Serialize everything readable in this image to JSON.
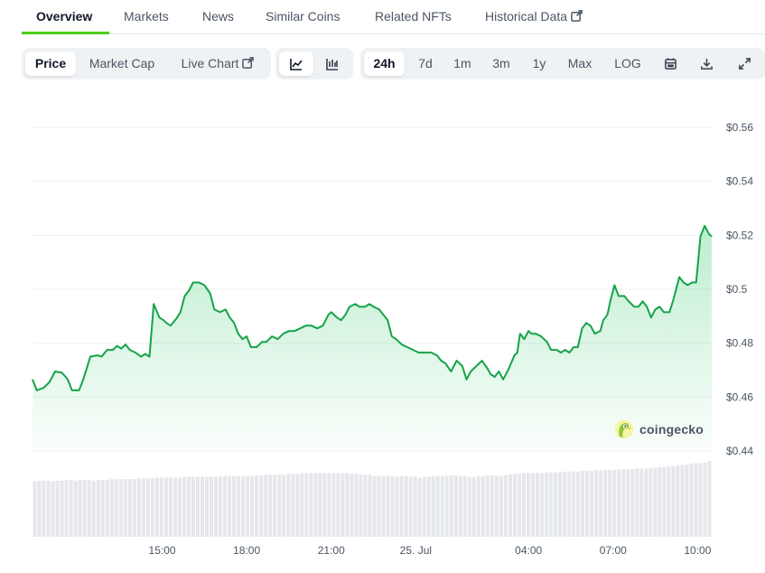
{
  "tabs": [
    {
      "label": "Overview",
      "active": true
    },
    {
      "label": "Markets"
    },
    {
      "label": "News"
    },
    {
      "label": "Similar Coins"
    },
    {
      "label": "Related NFTs"
    },
    {
      "label": "Historical Data",
      "external": true
    }
  ],
  "toolbar": {
    "metric": [
      {
        "label": "Price",
        "active": true
      },
      {
        "label": "Market Cap"
      },
      {
        "label": "Live Chart",
        "external": true
      }
    ],
    "chart_style": [
      {
        "icon": "line-chart-icon",
        "active": true
      },
      {
        "icon": "candlestick-chart-icon"
      }
    ],
    "ranges": [
      {
        "label": "24h",
        "active": true
      },
      {
        "label": "7d"
      },
      {
        "label": "1m"
      },
      {
        "label": "3m"
      },
      {
        "label": "1y"
      },
      {
        "label": "Max"
      },
      {
        "label": "LOG"
      }
    ],
    "actions": [
      "calendar-icon",
      "download-icon",
      "fullscreen-icon"
    ]
  },
  "watermark": {
    "text": "coingecko",
    "icon": "coingecko-logo-icon"
  },
  "colors": {
    "accent": "#4bcc00",
    "line": "#16a34a",
    "fill": "#22c55e",
    "volume": "#e5e7eb"
  },
  "chart_data": {
    "type": "area",
    "title": "",
    "xlabel": "",
    "ylabel": "",
    "yaxis_position": "right",
    "y_ticks": [
      0.44,
      0.46,
      0.48,
      0.5,
      0.52,
      0.54,
      0.56
    ],
    "y_tick_labels": [
      "$0.44",
      "$0.46",
      "$0.48",
      "$0.5",
      "$0.52",
      "$0.54",
      "$0.56"
    ],
    "ylim": [
      0.44,
      0.56
    ],
    "x_tick_labels": [
      {
        "label": "15:00",
        "t": 15
      },
      {
        "label": "18:00",
        "t": 18
      },
      {
        "label": "21:00",
        "t": 21
      },
      {
        "label": "25. Jul",
        "t": 24
      },
      {
        "label": "04:00",
        "t": 28
      },
      {
        "label": "07:00",
        "t": 31
      },
      {
        "label": "10:00",
        "t": 34
      }
    ],
    "xlim": [
      10.4,
      34.5
    ],
    "grid": true,
    "legend": "none",
    "series": [
      {
        "values": [
          [
            10.4,
            0.4665
          ],
          [
            10.55,
            0.4625
          ],
          [
            10.8,
            0.4635
          ],
          [
            11.0,
            0.4655
          ],
          [
            11.2,
            0.4695
          ],
          [
            11.45,
            0.469
          ],
          [
            11.65,
            0.4665
          ],
          [
            11.8,
            0.4625
          ],
          [
            12.05,
            0.4625
          ],
          [
            12.2,
            0.4665
          ],
          [
            12.45,
            0.475
          ],
          [
            12.7,
            0.4755
          ],
          [
            12.85,
            0.475
          ],
          [
            13.05,
            0.4775
          ],
          [
            13.25,
            0.4775
          ],
          [
            13.4,
            0.479
          ],
          [
            13.55,
            0.478
          ],
          [
            13.7,
            0.4795
          ],
          [
            13.85,
            0.4775
          ],
          [
            14.05,
            0.4765
          ],
          [
            14.25,
            0.475
          ],
          [
            14.4,
            0.476
          ],
          [
            14.55,
            0.475
          ],
          [
            14.7,
            0.4945
          ],
          [
            14.9,
            0.4895
          ],
          [
            15.05,
            0.4885
          ],
          [
            15.15,
            0.4875
          ],
          [
            15.3,
            0.4865
          ],
          [
            15.5,
            0.489
          ],
          [
            15.65,
            0.4915
          ],
          [
            15.8,
            0.4975
          ],
          [
            15.95,
            0.4995
          ],
          [
            16.1,
            0.5025
          ],
          [
            16.3,
            0.5025
          ],
          [
            16.5,
            0.5015
          ],
          [
            16.7,
            0.4985
          ],
          [
            16.85,
            0.4925
          ],
          [
            17.05,
            0.4915
          ],
          [
            17.25,
            0.4925
          ],
          [
            17.4,
            0.4895
          ],
          [
            17.55,
            0.4875
          ],
          [
            17.7,
            0.4835
          ],
          [
            17.85,
            0.4815
          ],
          [
            18.0,
            0.4825
          ],
          [
            18.15,
            0.4785
          ],
          [
            18.35,
            0.4785
          ],
          [
            18.55,
            0.4805
          ],
          [
            18.7,
            0.4805
          ],
          [
            18.9,
            0.4825
          ],
          [
            19.1,
            0.4815
          ],
          [
            19.3,
            0.4835
          ],
          [
            19.5,
            0.4845
          ],
          [
            19.7,
            0.4845
          ],
          [
            19.9,
            0.4855
          ],
          [
            20.1,
            0.4865
          ],
          [
            20.3,
            0.4865
          ],
          [
            20.5,
            0.4855
          ],
          [
            20.7,
            0.4865
          ],
          [
            20.9,
            0.4905
          ],
          [
            21.0,
            0.4915
          ],
          [
            21.2,
            0.4895
          ],
          [
            21.35,
            0.4885
          ],
          [
            21.5,
            0.4905
          ],
          [
            21.65,
            0.4935
          ],
          [
            21.85,
            0.4945
          ],
          [
            22.0,
            0.4935
          ],
          [
            22.2,
            0.4935
          ],
          [
            22.35,
            0.4945
          ],
          [
            22.5,
            0.4935
          ],
          [
            22.7,
            0.4925
          ],
          [
            22.85,
            0.4905
          ],
          [
            23.0,
            0.4885
          ],
          [
            23.15,
            0.4825
          ],
          [
            23.3,
            0.4815
          ],
          [
            23.5,
            0.4795
          ],
          [
            23.7,
            0.4785
          ],
          [
            23.9,
            0.4775
          ],
          [
            24.1,
            0.4765
          ],
          [
            24.3,
            0.4765
          ],
          [
            24.55,
            0.4765
          ],
          [
            24.75,
            0.4755
          ],
          [
            24.9,
            0.4735
          ],
          [
            25.05,
            0.4725
          ],
          [
            25.25,
            0.4695
          ],
          [
            25.45,
            0.4735
          ],
          [
            25.65,
            0.4715
          ],
          [
            25.8,
            0.4665
          ],
          [
            25.95,
            0.4695
          ],
          [
            26.15,
            0.4715
          ],
          [
            26.35,
            0.4735
          ],
          [
            26.55,
            0.4705
          ],
          [
            26.65,
            0.4685
          ],
          [
            26.8,
            0.4675
          ],
          [
            26.95,
            0.4695
          ],
          [
            27.1,
            0.4665
          ],
          [
            27.3,
            0.4705
          ],
          [
            27.5,
            0.4755
          ],
          [
            27.6,
            0.4765
          ],
          [
            27.7,
            0.4835
          ],
          [
            27.85,
            0.4815
          ],
          [
            28.0,
            0.4845
          ],
          [
            28.1,
            0.4835
          ],
          [
            28.25,
            0.4835
          ],
          [
            28.45,
            0.4825
          ],
          [
            28.65,
            0.4805
          ],
          [
            28.8,
            0.4775
          ],
          [
            29.0,
            0.4775
          ],
          [
            29.15,
            0.4765
          ],
          [
            29.3,
            0.4775
          ],
          [
            29.45,
            0.4765
          ],
          [
            29.6,
            0.4785
          ],
          [
            29.75,
            0.4785
          ],
          [
            29.9,
            0.4855
          ],
          [
            30.05,
            0.4875
          ],
          [
            30.2,
            0.4865
          ],
          [
            30.35,
            0.4835
          ],
          [
            30.55,
            0.4845
          ],
          [
            30.65,
            0.4885
          ],
          [
            30.8,
            0.4905
          ],
          [
            30.9,
            0.4955
          ],
          [
            31.05,
            0.5015
          ],
          [
            31.2,
            0.4975
          ],
          [
            31.4,
            0.4975
          ],
          [
            31.55,
            0.4955
          ],
          [
            31.75,
            0.4935
          ],
          [
            31.9,
            0.4935
          ],
          [
            32.05,
            0.4955
          ],
          [
            32.2,
            0.4935
          ],
          [
            32.35,
            0.4895
          ],
          [
            32.5,
            0.4925
          ],
          [
            32.65,
            0.4935
          ],
          [
            32.8,
            0.4915
          ],
          [
            33.0,
            0.4915
          ],
          [
            33.15,
            0.4965
          ],
          [
            33.35,
            0.5045
          ],
          [
            33.5,
            0.5025
          ],
          [
            33.65,
            0.5015
          ],
          [
            33.8,
            0.5025
          ],
          [
            33.95,
            0.5025
          ],
          [
            34.1,
            0.5195
          ],
          [
            34.25,
            0.5235
          ],
          [
            34.4,
            0.5205
          ],
          [
            34.5,
            0.5195
          ]
        ]
      }
    ],
    "volume_relative": [
      0.73,
      0.74,
      0.74,
      0.74,
      0.73,
      0.74,
      0.74,
      0.75,
      0.75,
      0.74,
      0.75,
      0.75,
      0.75,
      0.74,
      0.75,
      0.75,
      0.75,
      0.76,
      0.76,
      0.76,
      0.76,
      0.76,
      0.76,
      0.77,
      0.77,
      0.77,
      0.77,
      0.78,
      0.78,
      0.78,
      0.78,
      0.78,
      0.78,
      0.79,
      0.79,
      0.79,
      0.79,
      0.79,
      0.79,
      0.79,
      0.79,
      0.8,
      0.8,
      0.8,
      0.8,
      0.8,
      0.8,
      0.8,
      0.8,
      0.81,
      0.81,
      0.82,
      0.82,
      0.82,
      0.82,
      0.82,
      0.83,
      0.83,
      0.83,
      0.84,
      0.84,
      0.84,
      0.84,
      0.84,
      0.84,
      0.84,
      0.84,
      0.84,
      0.84,
      0.84,
      0.83,
      0.83,
      0.82,
      0.82,
      0.82,
      0.8,
      0.8,
      0.8,
      0.8,
      0.8,
      0.79,
      0.8,
      0.8,
      0.79,
      0.8,
      0.78,
      0.79,
      0.79,
      0.8,
      0.8,
      0.8,
      0.8,
      0.81,
      0.81,
      0.8,
      0.8,
      0.79,
      0.79,
      0.8,
      0.8,
      0.81,
      0.81,
      0.8,
      0.8,
      0.81,
      0.82,
      0.83,
      0.83,
      0.84,
      0.84,
      0.84,
      0.84,
      0.84,
      0.85,
      0.85,
      0.85,
      0.85,
      0.86,
      0.86,
      0.86,
      0.86,
      0.87,
      0.87,
      0.87,
      0.88,
      0.88,
      0.88,
      0.88,
      0.88,
      0.89,
      0.89,
      0.89,
      0.89,
      0.9,
      0.9,
      0.9,
      0.91,
      0.91,
      0.92,
      0.92,
      0.93,
      0.93,
      0.94,
      0.95,
      0.95,
      0.96,
      0.97,
      0.97,
      0.98,
      1.0
    ]
  }
}
